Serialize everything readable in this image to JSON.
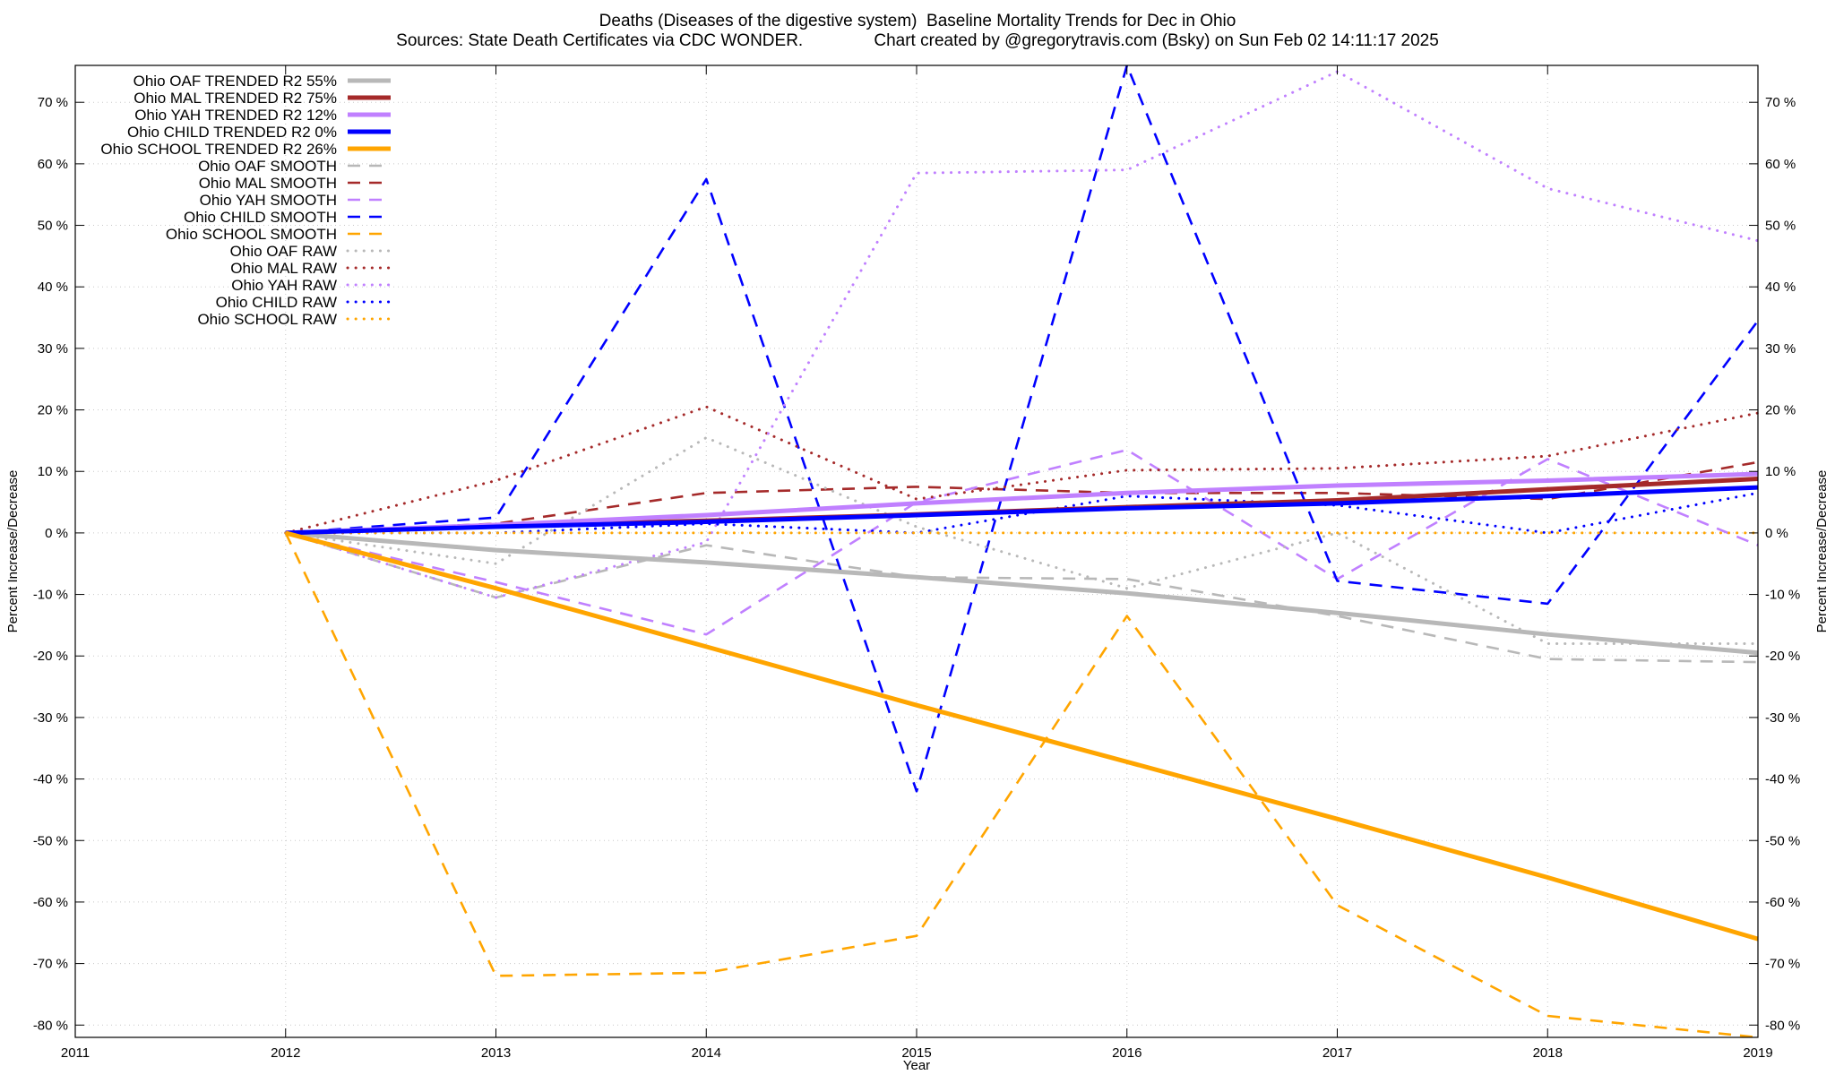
{
  "chart_data": {
    "type": "line",
    "title": "Deaths (Diseases of the digestive system)  Baseline Mortality Trends for Dec in Ohio",
    "subtitle": "Sources: State Death Certificates via CDC WONDER.               Chart created by @gregorytravis.com (Bsky) on Sun Feb 02 14:11:17 2025",
    "xlabel": "Year",
    "ylabel": "Percent Increase/Decrease",
    "y2label": "Percent Increase/Decrease",
    "xlim": [
      2011,
      2019
    ],
    "ylim": [
      -82,
      76
    ],
    "x_ticks": [
      "2011",
      "2012",
      "2013",
      "2014",
      "2015",
      "2016",
      "2017",
      "2018",
      "2019"
    ],
    "y_ticks": [
      "70 %",
      "60 %",
      "50 %",
      "40 %",
      "30 %",
      "20 %",
      "10 %",
      "0 %",
      "-10 %",
      "-20 %",
      "-30 %",
      "-40 %",
      "-50 %",
      "-60 %",
      "-70 %",
      "-80 %"
    ],
    "y_tick_values": [
      70,
      60,
      50,
      40,
      30,
      20,
      10,
      0,
      -10,
      -20,
      -30,
      -40,
      -50,
      -60,
      -70,
      -80
    ],
    "grid": true,
    "legend_position": "top-left",
    "x": [
      2012,
      2013,
      2014,
      2015,
      2016,
      2017,
      2018,
      2019
    ],
    "series": [
      {
        "name": "Ohio OAF TRENDED R2  55%",
        "style": "solid",
        "color": "#b8b8b8",
        "values": [
          0,
          -2.8,
          -4.8,
          -7.2,
          -9.8,
          -13.0,
          -16.5,
          -19.5
        ]
      },
      {
        "name": "Ohio MAL TRENDED R2  75%",
        "style": "solid",
        "color": "#a52a2a",
        "values": [
          0,
          1.1,
          2.0,
          3.0,
          4.2,
          5.3,
          7.1,
          8.8
        ]
      },
      {
        "name": "Ohio YAH TRENDED R2  12%",
        "style": "solid",
        "color": "#c080ff",
        "values": [
          0,
          1.3,
          2.9,
          4.8,
          6.5,
          7.7,
          8.5,
          9.6
        ]
      },
      {
        "name": "Ohio CHILD TRENDED R2   0%",
        "style": "solid",
        "color": "#0000ff",
        "values": [
          0,
          1.0,
          1.8,
          2.9,
          4.0,
          4.8,
          6.0,
          7.4
        ]
      },
      {
        "name": "Ohio SCHOOL TRENDED R2  26%",
        "style": "solid",
        "color": "#ffa500",
        "values": [
          0,
          -9.0,
          -18.5,
          -28.0,
          -37.2,
          -46.5,
          -56.0,
          -66.0
        ]
      },
      {
        "name": "Ohio OAF SMOOTH",
        "style": "dashed",
        "color": "#b8b8b8",
        "values": [
          0,
          -10.5,
          -2.0,
          -7.2,
          -7.5,
          -13.5,
          -20.5,
          -21.0
        ]
      },
      {
        "name": "Ohio MAL SMOOTH",
        "style": "dashed",
        "color": "#a52a2a",
        "values": [
          0,
          1.5,
          6.5,
          7.5,
          6.5,
          6.5,
          5.5,
          11.5
        ]
      },
      {
        "name": "Ohio YAH SMOOTH",
        "style": "dashed",
        "color": "#c080ff",
        "values": [
          0,
          -8.0,
          -16.5,
          5.0,
          13.5,
          -7.5,
          12.0,
          -2.0
        ]
      },
      {
        "name": "Ohio CHILD SMOOTH",
        "style": "dashed",
        "color": "#0000ff",
        "values": [
          0,
          2.5,
          57.5,
          -42.0,
          76.0,
          -7.8,
          -11.5,
          34.5
        ]
      },
      {
        "name": "Ohio SCHOOL SMOOTH",
        "style": "dashed",
        "color": "#ffa500",
        "values": [
          0,
          -72.0,
          -71.5,
          -65.5,
          -13.5,
          -60.5,
          -78.5,
          -82.0
        ]
      },
      {
        "name": "Ohio OAF RAW",
        "style": "dotted",
        "color": "#b8b8b8",
        "values": [
          0,
          -5.0,
          15.5,
          1.0,
          -9.0,
          0.0,
          -18.0,
          -18.0
        ]
      },
      {
        "name": "Ohio MAL RAW",
        "style": "dotted",
        "color": "#a52a2a",
        "values": [
          0,
          8.5,
          20.5,
          5.5,
          10.2,
          10.5,
          12.5,
          19.5
        ]
      },
      {
        "name": "Ohio YAH RAW",
        "style": "dotted",
        "color": "#c080ff",
        "values": [
          0,
          -10.5,
          -1.5,
          58.5,
          59.0,
          75.0,
          56.0,
          47.5
        ]
      },
      {
        "name": "Ohio CHILD RAW",
        "style": "dotted",
        "color": "#0000ff",
        "values": [
          0,
          0,
          1.5,
          0,
          6.0,
          4.5,
          0,
          6.5
        ]
      },
      {
        "name": "Ohio SCHOOL RAW",
        "style": "dotted",
        "color": "#ffa500",
        "values": [
          0,
          0,
          0,
          0,
          0,
          0,
          0,
          0
        ]
      }
    ]
  }
}
